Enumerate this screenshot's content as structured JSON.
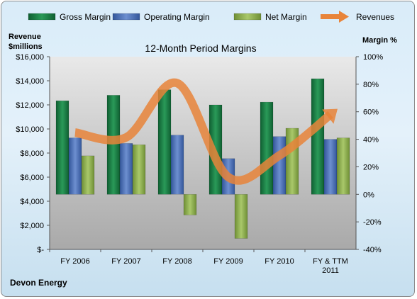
{
  "chart_data": {
    "type": "bar",
    "title": "12-Month Period Margins",
    "company": "Devon Energy",
    "categories": [
      "FY 2006",
      "FY 2007",
      "FY 2008",
      "FY 2009",
      "FY 2010",
      "FY & TTM 2011"
    ],
    "left_axis": {
      "label_line1": "Revenue",
      "label_line2": "$millions",
      "ylim": [
        0,
        16000
      ],
      "ticks": [
        {
          "value": 0,
          "label": "$-"
        },
        {
          "value": 2000,
          "label": "$2,000"
        },
        {
          "value": 4000,
          "label": "$4,000"
        },
        {
          "value": 6000,
          "label": "$6,000"
        },
        {
          "value": 8000,
          "label": "$8,000"
        },
        {
          "value": 10000,
          "label": "$10,000"
        },
        {
          "value": 12000,
          "label": "$12,000"
        },
        {
          "value": 14000,
          "label": "$14,000"
        },
        {
          "value": 16000,
          "label": "$16,000"
        }
      ]
    },
    "right_axis": {
      "label": "Margin %",
      "ylim": [
        -40,
        100
      ],
      "ticks": [
        {
          "value": -40,
          "label": "-40%"
        },
        {
          "value": -20,
          "label": "-20%"
        },
        {
          "value": 0,
          "label": "0%"
        },
        {
          "value": 20,
          "label": "20%"
        },
        {
          "value": 40,
          "label": "40%"
        },
        {
          "value": 60,
          "label": "60%"
        },
        {
          "value": 80,
          "label": "80%"
        },
        {
          "value": 100,
          "label": "100%"
        }
      ]
    },
    "series": [
      {
        "name": "Gross Margin",
        "kind": "bar",
        "axis": "right",
        "color": "#1e7a45",
        "values": [
          68,
          72,
          76,
          65,
          67,
          84
        ]
      },
      {
        "name": "Operating Margin",
        "kind": "bar",
        "axis": "right",
        "color": "#4a6fb5",
        "values": [
          41,
          37,
          43,
          26,
          42,
          40
        ]
      },
      {
        "name": "Net Margin",
        "kind": "bar",
        "axis": "right",
        "color": "#8fb050",
        "values": [
          28,
          36,
          -15,
          -32,
          48,
          41
        ]
      },
      {
        "name": "Revenues",
        "kind": "line",
        "axis": "left",
        "color": "#e8843a",
        "values": [
          9700,
          9300,
          13800,
          6000,
          7800,
          11200
        ]
      }
    ],
    "legend": {
      "position": "top"
    },
    "grid": false
  }
}
